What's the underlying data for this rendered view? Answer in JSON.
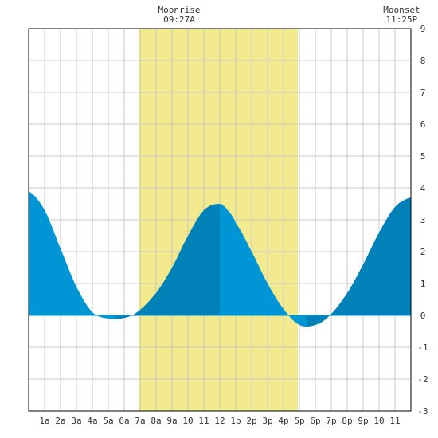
{
  "chart_data": {
    "type": "area",
    "title": "",
    "xlabel": "",
    "ylabel": "",
    "x_ticks": [
      "1a",
      "2a",
      "3a",
      "4a",
      "5a",
      "6a",
      "7a",
      "8a",
      "9a",
      "10",
      "11",
      "12",
      "1p",
      "2p",
      "3p",
      "4p",
      "5p",
      "6p",
      "7p",
      "8p",
      "9p",
      "10",
      "11"
    ],
    "xlim": [
      0,
      24
    ],
    "ylim": [
      -3,
      9
    ],
    "y_ticks": [
      -3,
      -2,
      -1,
      0,
      1,
      2,
      3,
      4,
      5,
      6,
      7,
      8,
      9
    ],
    "grid": true,
    "daylight": {
      "start": 6.9,
      "end": 16.9
    },
    "annotations": [
      {
        "id": "moonrise",
        "label": "Moonrise",
        "time": "09:27A",
        "x": 9.45
      },
      {
        "id": "moonset",
        "label": "Moonset",
        "time": "11:25P",
        "x": 23.42
      }
    ],
    "series": [
      {
        "x": [
          0,
          1,
          2,
          3,
          4,
          5,
          5.8,
          6.8,
          8,
          9,
          10,
          11,
          12,
          12.5,
          13,
          14,
          15,
          16,
          17,
          18,
          18.9,
          20,
          21,
          22,
          23,
          24
        ],
        "values": [
          3.9,
          3.3,
          2.1,
          0.9,
          0.1,
          -0.1,
          -0.1,
          0.1,
          0.7,
          1.5,
          2.5,
          3.3,
          3.5,
          3.3,
          2.9,
          2.0,
          1.0,
          0.2,
          -0.3,
          -0.3,
          0.0,
          0.7,
          1.6,
          2.6,
          3.4,
          3.7
        ]
      }
    ],
    "colors": {
      "daylight": "#f2ea8c",
      "fill_light": "#0096d6",
      "fill_dark": "#0081b8",
      "grid": "#c8c8c8",
      "axis": "#000000",
      "text": "#333333"
    }
  }
}
